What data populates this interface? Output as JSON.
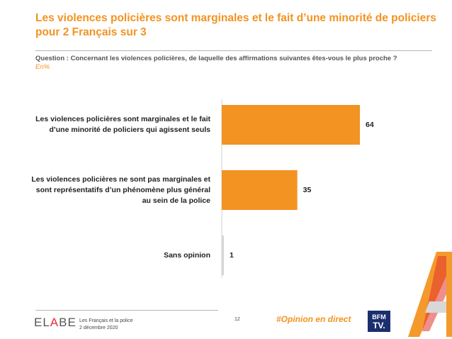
{
  "title": "Les violences policières sont marginales et le fait d’une minorité de policiers pour 2 Français sur 3",
  "question": "Question : Concernant les violences policières, de laquelle des affirmations suivantes êtes-vous le plus proche ?",
  "unit": "En%",
  "chart_data": {
    "type": "bar",
    "orientation": "horizontal",
    "categories": [
      "Les violences policières sont marginales et le fait d’une minorité de policiers qui agissent seuls",
      "Les violences policières ne sont pas marginales et sont représentatifs d’un phénomène plus général au sein de la police",
      "Sans opinion"
    ],
    "values": [
      64,
      35,
      1
    ],
    "value_labels": [
      "64",
      "35",
      "1"
    ],
    "xlim": [
      0,
      64
    ],
    "grid": false,
    "legend": "none",
    "bar_color": "#f39321"
  },
  "footer": {
    "logo_left": "EL",
    "logo_accent": "A",
    "logo_right": "BE",
    "study": "Les Français et la police",
    "date": "2 décembre 2020",
    "page": "12",
    "hashtag": "#Opinion en direct",
    "broadcaster_top": "BFM",
    "broadcaster_bottom": "TV."
  },
  "colors": {
    "accent": "#f39321",
    "elabe_red": "#e2332f",
    "bfm_blue": "#1b2f6e"
  }
}
